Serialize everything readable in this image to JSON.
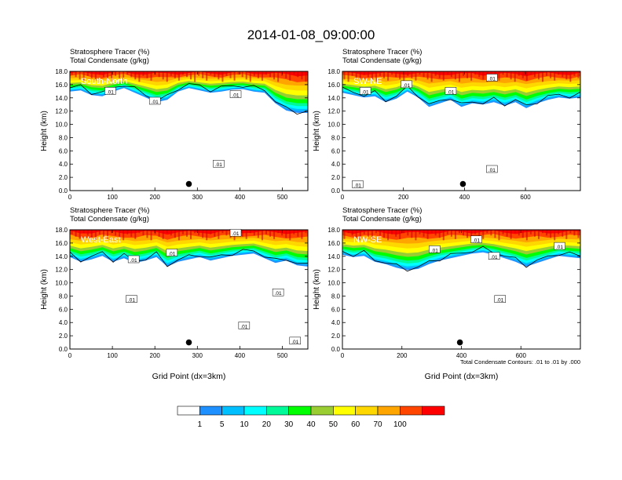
{
  "figure_title": "2014-01-08_09:00:00",
  "footnote": "Total Condensate Contours: .01 to .01 by .000",
  "colorbar": {
    "labels": [
      "1",
      "5",
      "10",
      "20",
      "30",
      "40",
      "50",
      "60",
      "70",
      "100"
    ],
    "colors": [
      "#ffffff",
      "#1e90ff",
      "#00bfff",
      "#00ffff",
      "#00fa9a",
      "#00ff00",
      "#9acd32",
      "#ffff00",
      "#ffd700",
      "#ffa500",
      "#ff4500",
      "#ff0000"
    ]
  },
  "chart_data": [
    {
      "type": "contour",
      "panel_label": "South-North",
      "subtitle_line1": "Stratosphere Tracer   (%)",
      "subtitle_line2": "Total Condensate   (g/kg)",
      "ylabel": "Height (km)",
      "xlabel": "",
      "xlim": [
        0,
        560
      ],
      "ylim": [
        0,
        18
      ],
      "xticks": [
        "0",
        "100",
        "200",
        "300",
        "400",
        "500"
      ],
      "xtick_values": [
        0,
        100,
        200,
        300,
        400,
        500
      ],
      "yticks": [
        "0.0",
        "2.0",
        "4.0",
        "6.0",
        "8.0",
        "10.0",
        "12.0",
        "14.0",
        "16.0",
        "18.0"
      ],
      "contour_labels": [
        {
          "text": ".01",
          "x": 95,
          "y": 15.0
        },
        {
          "text": ".01",
          "x": 200,
          "y": 13.5
        },
        {
          "text": ".01",
          "x": 390,
          "y": 14.5
        },
        {
          "text": ".01",
          "x": 350,
          "y": 4.0
        }
      ],
      "marker": {
        "x": 280,
        "y": 1.0
      },
      "tracer_base_km": [
        14.6,
        14.8,
        14.0,
        13.8,
        14.6,
        15.2,
        14.4,
        13.6,
        12.8,
        13.2,
        14.6,
        15.2,
        14.8,
        14.4,
        14.6,
        14.9,
        15.0,
        14.6,
        14.4,
        12.6,
        11.4,
        11.0,
        11.0
      ]
    },
    {
      "type": "contour",
      "panel_label": "SW-NE",
      "subtitle_line1": "Stratosphere Tracer   (%)",
      "subtitle_line2": "Total Condensate   (g/kg)",
      "ylabel": "Height (km)",
      "xlabel": "",
      "xlim": [
        0,
        780
      ],
      "ylim": [
        0,
        18
      ],
      "xticks": [
        "0",
        "200",
        "400",
        "600"
      ],
      "xtick_values": [
        0,
        200,
        400,
        600
      ],
      "yticks": [
        "0.0",
        "2.0",
        "4.0",
        "6.0",
        "8.0",
        "10.0",
        "12.0",
        "14.0",
        "16.0",
        "18.0"
      ],
      "contour_labels": [
        {
          "text": ".01",
          "x": 75,
          "y": 15.0
        },
        {
          "text": ".01",
          "x": 210,
          "y": 16.0
        },
        {
          "text": ".01",
          "x": 355,
          "y": 15.0
        },
        {
          "text": ".01",
          "x": 490,
          "y": 3.2
        },
        {
          "text": ".01",
          "x": 50,
          "y": 0.9
        },
        {
          "text": ".01",
          "x": 490,
          "y": 17.0
        }
      ],
      "marker": {
        "x": 395,
        "y": 1.0
      },
      "tracer_base_km": [
        14.4,
        14.0,
        13.6,
        13.8,
        12.8,
        13.4,
        14.6,
        13.6,
        12.0,
        12.6,
        13.2,
        12.0,
        12.6,
        12.4,
        12.8,
        12.2,
        12.8,
        11.8,
        12.6,
        13.2,
        13.6,
        13.4,
        13.6
      ]
    },
    {
      "type": "contour",
      "panel_label": "West-East",
      "subtitle_line1": "Stratosphere Tracer   (%)",
      "subtitle_line2": "Total Condensate   (g/kg)",
      "ylabel": "Height (km)",
      "xlabel": "Grid Point (dx=3km)",
      "xlim": [
        0,
        560
      ],
      "ylim": [
        0,
        18
      ],
      "xticks": [
        "0",
        "100",
        "200",
        "300",
        "400",
        "500"
      ],
      "xtick_values": [
        0,
        100,
        200,
        300,
        400,
        500
      ],
      "yticks": [
        "0.0",
        "2.0",
        "4.0",
        "6.0",
        "8.0",
        "10.0",
        "12.0",
        "14.0",
        "16.0",
        "18.0"
      ],
      "contour_labels": [
        {
          "text": ".01",
          "x": 150,
          "y": 13.5
        },
        {
          "text": ".01",
          "x": 240,
          "y": 14.5
        },
        {
          "text": ".01",
          "x": 145,
          "y": 7.5
        },
        {
          "text": ".01",
          "x": 490,
          "y": 8.5
        },
        {
          "text": ".01",
          "x": 410,
          "y": 3.5
        },
        {
          "text": ".01",
          "x": 530,
          "y": 1.2
        },
        {
          "text": ".01",
          "x": 390,
          "y": 17.5
        }
      ],
      "marker": {
        "x": 280,
        "y": 1.0
      },
      "tracer_base_km": [
        13.4,
        12.6,
        13.0,
        13.6,
        12.6,
        13.2,
        12.4,
        12.8,
        13.4,
        11.8,
        12.6,
        13.0,
        13.4,
        12.8,
        13.2,
        13.6,
        13.8,
        14.0,
        13.2,
        12.4,
        12.8,
        12.0,
        11.8
      ]
    },
    {
      "type": "contour",
      "panel_label": "NW-SE",
      "subtitle_line1": "Stratosphere Tracer   (%)",
      "subtitle_line2": "Total Condensate   (g/kg)",
      "ylabel": "Height (km)",
      "xlabel": "Grid Point (dx=3km)",
      "xlim": [
        0,
        800
      ],
      "ylim": [
        0,
        18
      ],
      "xticks": [
        "0",
        "200",
        "400",
        "600"
      ],
      "xtick_values": [
        0,
        200,
        400,
        600
      ],
      "yticks": [
        "0.0",
        "2.0",
        "4.0",
        "6.0",
        "8.0",
        "10.0",
        "12.0",
        "14.0",
        "16.0",
        "18.0"
      ],
      "contour_labels": [
        {
          "text": ".01",
          "x": 310,
          "y": 15.0
        },
        {
          "text": ".01",
          "x": 510,
          "y": 14.0
        },
        {
          "text": ".01",
          "x": 530,
          "y": 7.5
        },
        {
          "text": ".01",
          "x": 730,
          "y": 15.5
        },
        {
          "text": ".01",
          "x": 450,
          "y": 16.5
        }
      ],
      "marker": {
        "x": 395,
        "y": 1.0
      },
      "tracer_base_km": [
        13.8,
        13.4,
        13.6,
        12.6,
        12.2,
        11.6,
        11.2,
        11.4,
        12.2,
        12.8,
        13.2,
        13.6,
        14.0,
        14.2,
        13.8,
        13.2,
        12.6,
        11.8,
        12.4,
        13.0,
        13.6,
        13.4,
        13.2
      ]
    }
  ]
}
